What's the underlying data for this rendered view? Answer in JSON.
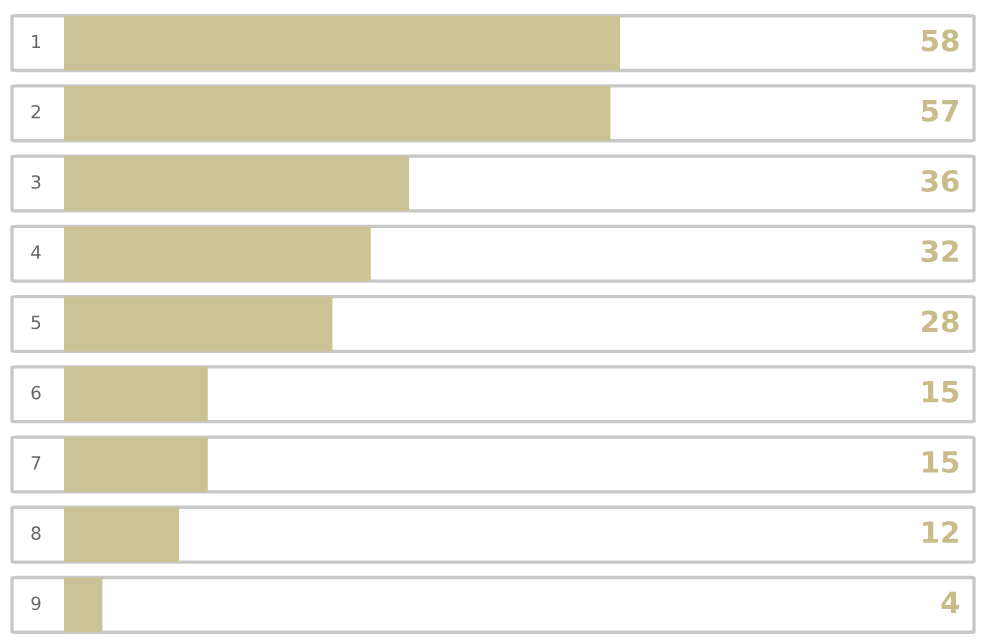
{
  "chart_data": {
    "type": "bar",
    "orientation": "horizontal",
    "categories": [
      "1",
      "2",
      "3",
      "4",
      "5",
      "6",
      "7",
      "8",
      "9"
    ],
    "values": [
      58,
      57,
      36,
      32,
      28,
      15,
      15,
      12,
      4
    ],
    "color": "#c9c396",
    "data_labels": true
  }
}
